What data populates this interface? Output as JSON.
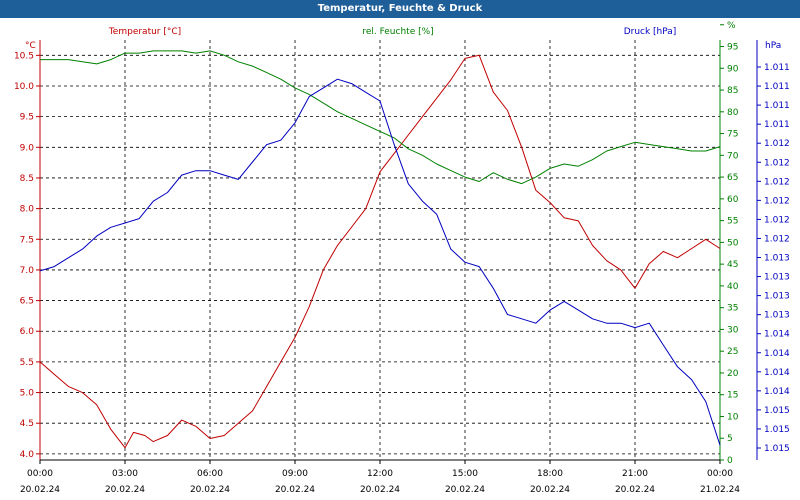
{
  "window": {
    "title": "Temperatur, Feuchte & Druck"
  },
  "legend": {
    "temperature": "Temperatur [°C]",
    "humidity": "rel. Feuchte [%]",
    "pressure": "Druck [hPa]"
  },
  "colors": {
    "temperature": "#c00000",
    "humidity": "#008000",
    "pressure": "#0000c0",
    "title_bar": "#1f5f99"
  },
  "chart_data": {
    "type": "line",
    "title": "Temperatur, Feuchte & Druck",
    "grid": true,
    "x_axis": {
      "range": [
        "2024-02-20 00:00",
        "2024-02-21 00:00"
      ],
      "ticks": [
        {
          "time": "00:00",
          "date": "20.02.24"
        },
        {
          "time": "03:00",
          "date": "20.02.24"
        },
        {
          "time": "06:00",
          "date": "20.02.24"
        },
        {
          "time": "09:00",
          "date": "20.02.24"
        },
        {
          "time": "12:00",
          "date": "20.02.24"
        },
        {
          "time": "15:00",
          "date": "20.02.24"
        },
        {
          "time": "18:00",
          "date": "20.02.24"
        },
        {
          "time": "21:00",
          "date": "20.02.24"
        },
        {
          "time": "00:00",
          "date": "21.02.24"
        }
      ]
    },
    "y_axes": {
      "temperature": {
        "unit": "°C",
        "side": "left",
        "range": [
          3.9,
          10.75
        ],
        "ticks": [
          "4.0",
          "4.5",
          "5.0",
          "5.5",
          "6.0",
          "6.5",
          "7.0",
          "7.5",
          "8.0",
          "8.5",
          "9.0",
          "9.5",
          "10.0",
          "10.5"
        ]
      },
      "humidity": {
        "unit": "%",
        "side": "right",
        "range": [
          0,
          96.5
        ],
        "ticks": [
          "0",
          "5",
          "10",
          "15",
          "20",
          "25",
          "30",
          "35",
          "40",
          "45",
          "50",
          "55",
          "60",
          "65",
          "70",
          "75",
          "80",
          "85",
          "90",
          "95",
          "%"
        ]
      },
      "pressure": {
        "unit": "hPa",
        "side": "right",
        "range": [
          1010.88,
          1015.7
        ],
        "ticks": [
          "1.011",
          "1.011",
          "1.011",
          "1.011",
          "1.012",
          "1.012",
          "1.012",
          "1.012",
          "1.012",
          "1.012",
          "1.013",
          "1.013",
          "1.013",
          "1.013",
          "1.014",
          "1.014",
          "1.014",
          "1.014",
          "1.015",
          "1.015",
          "1.015"
        ]
      }
    },
    "series": [
      {
        "name": "Temperatur [°C]",
        "axis": "temperature",
        "hours": [
          0,
          0.5,
          1,
          1.5,
          2,
          2.5,
          3,
          3.3,
          3.7,
          4,
          4.5,
          5,
          5.5,
          6,
          6.5,
          7,
          7.5,
          8,
          8.5,
          9,
          9.5,
          10,
          10.5,
          11,
          11.5,
          12,
          12.5,
          13,
          13.5,
          14,
          14.5,
          15,
          15.5,
          16,
          16.5,
          17,
          17.5,
          18,
          18.5,
          19,
          19.5,
          20,
          20.5,
          21,
          21.5,
          22,
          22.5,
          23,
          23.5,
          24
        ],
        "values": [
          5.5,
          5.3,
          5.1,
          5.0,
          4.8,
          4.4,
          4.1,
          4.35,
          4.3,
          4.2,
          4.3,
          4.55,
          4.45,
          4.25,
          4.3,
          4.5,
          4.7,
          5.1,
          5.5,
          5.9,
          6.4,
          7.0,
          7.4,
          7.7,
          8.0,
          8.6,
          8.9,
          9.2,
          9.5,
          9.8,
          10.1,
          10.45,
          10.5,
          9.9,
          9.6,
          9.0,
          8.3,
          8.1,
          7.85,
          7.8,
          7.4,
          7.15,
          7.0,
          6.7,
          7.1,
          7.3,
          7.2,
          7.35,
          7.5,
          7.35
        ]
      },
      {
        "name": "rel. Feuchte [%]",
        "axis": "humidity",
        "hours": [
          0,
          0.5,
          1,
          1.5,
          2,
          2.5,
          3,
          3.5,
          4,
          4.5,
          5,
          5.5,
          6,
          6.5,
          7,
          7.5,
          8,
          8.5,
          9,
          9.5,
          10,
          10.5,
          11,
          11.5,
          12,
          12.5,
          13,
          13.5,
          14,
          14.5,
          15,
          15.5,
          16,
          16.5,
          17,
          17.5,
          18,
          18.5,
          19,
          19.5,
          20,
          20.5,
          21,
          21.5,
          22,
          22.5,
          23,
          23.5,
          24
        ],
        "values": [
          92,
          92,
          92,
          91.5,
          91,
          92,
          93.5,
          93.5,
          94,
          94,
          94,
          93.5,
          94,
          93,
          91.5,
          90.5,
          89,
          87.5,
          85.5,
          84,
          82,
          80,
          78.5,
          77,
          75.5,
          74,
          71.5,
          70,
          68,
          66.5,
          65,
          64,
          66,
          64.5,
          63.5,
          65,
          67,
          68,
          67.5,
          69,
          71,
          72,
          73,
          72.5,
          72,
          71.5,
          71,
          71,
          72
        ]
      },
      {
        "name": "Druck [hPa]",
        "axis": "pressure",
        "hours": [
          0,
          0.5,
          1,
          1.5,
          2,
          2.5,
          3,
          3.5,
          4,
          4.5,
          5,
          5.5,
          6,
          6.5,
          7,
          7.5,
          8,
          8.5,
          9,
          9.5,
          10,
          10.5,
          11,
          11.5,
          12,
          12.5,
          13,
          13.5,
          14,
          14.5,
          15,
          15.5,
          16,
          16.5,
          17,
          17.5,
          18,
          18.5,
          19,
          19.5,
          20,
          20.5,
          21,
          21.5,
          22,
          22.5,
          23,
          23.5,
          24
        ],
        "values": [
          1013.05,
          1013.1,
          1013.2,
          1013.3,
          1013.45,
          1013.55,
          1013.6,
          1013.65,
          1013.85,
          1013.95,
          1014.15,
          1014.2,
          1014.2,
          1014.15,
          1014.1,
          1014.3,
          1014.5,
          1014.55,
          1014.75,
          1015.05,
          1015.15,
          1015.25,
          1015.2,
          1015.1,
          1015.0,
          1014.5,
          1014.05,
          1013.85,
          1013.7,
          1013.3,
          1013.15,
          1013.1,
          1012.85,
          1012.55,
          1012.5,
          1012.45,
          1012.6,
          1012.7,
          1012.6,
          1012.5,
          1012.45,
          1012.45,
          1012.4,
          1012.45,
          1012.2,
          1011.95,
          1011.8,
          1011.55,
          1011.05
        ]
      }
    ]
  }
}
